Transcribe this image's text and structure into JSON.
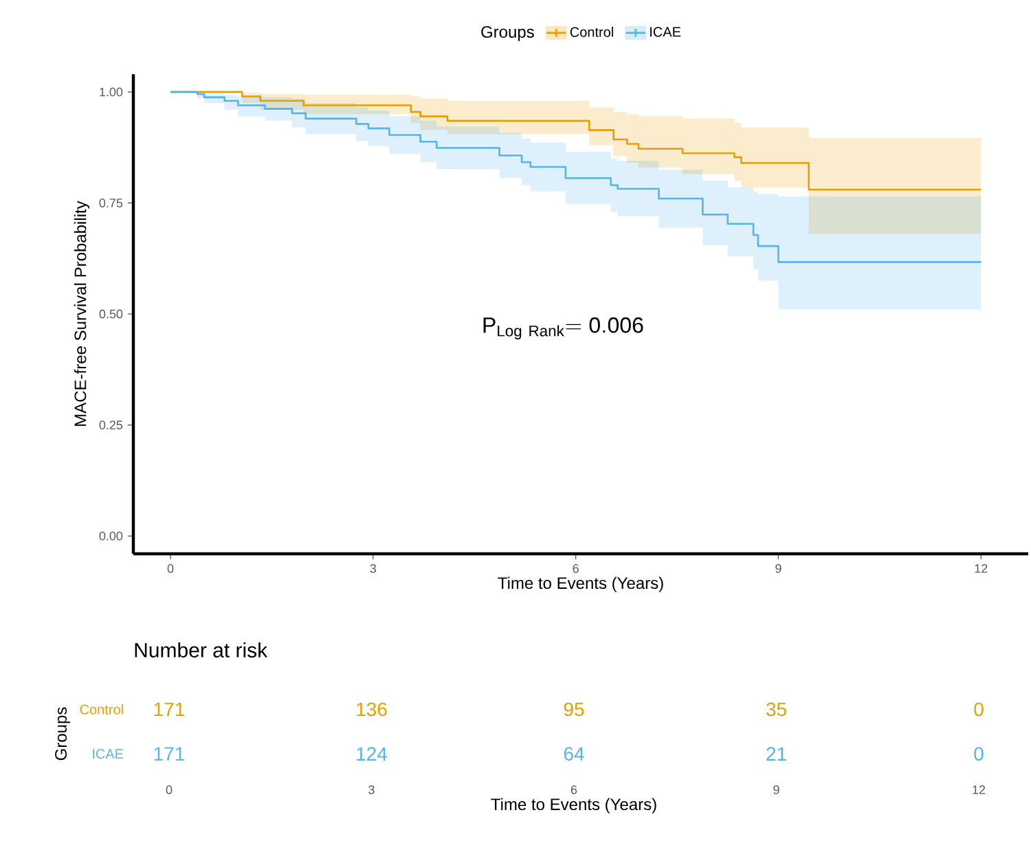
{
  "chart_data": [
    {
      "type": "step",
      "xlabel": "Time to Events (Years)",
      "ylabel": "MACE-free Survival Probability",
      "legend_title": "Groups",
      "legend": "top",
      "xlim": [
        -0.55,
        12.7
      ],
      "xticks": [
        0,
        3,
        6,
        9,
        12
      ],
      "ylim": [
        -0.04,
        1.04
      ],
      "yticks": [
        {
          "value": 0,
          "label": "0.00"
        },
        {
          "value": 0.25,
          "label": "0.25"
        },
        {
          "value": 0.5,
          "label": "0.50"
        },
        {
          "value": 0.75,
          "label": "0.75"
        },
        {
          "value": 1,
          "label": "1.00"
        }
      ],
      "annotations": [
        "\\mathrm{P}_{\\mathrm{Log\\ Rank}}\\mathrm{=0.006}"
      ],
      "series": [
        {
          "name": "Control",
          "color": "#e69f00",
          "x": [
            0,
            1.06,
            1.33,
            1.97,
            3.56,
            3.7,
            4.1,
            6.2,
            6.56,
            6.76,
            6.93,
            7.58,
            8.35,
            8.45,
            9.45,
            12
          ],
          "values": [
            1.0,
            0.99,
            0.98,
            0.97,
            0.955,
            0.945,
            0.935,
            0.914,
            0.893,
            0.883,
            0.872,
            0.862,
            0.853,
            0.84,
            0.78,
            0.78
          ],
          "upper": [
            1.0,
            0.998,
            0.996,
            0.994,
            0.99,
            0.985,
            0.98,
            0.965,
            0.955,
            0.95,
            0.945,
            0.94,
            0.93,
            0.92,
            0.896,
            0.896
          ],
          "lower": [
            1.0,
            0.975,
            0.96,
            0.95,
            0.93,
            0.915,
            0.905,
            0.88,
            0.855,
            0.84,
            0.83,
            0.815,
            0.8,
            0.785,
            0.68,
            0.68
          ]
        },
        {
          "name": "ICAE",
          "color": "#56b4e9",
          "x": [
            0,
            0.4,
            0.5,
            0.8,
            1.0,
            1.4,
            1.8,
            2.0,
            2.75,
            2.93,
            3.24,
            3.7,
            3.94,
            4.87,
            5.2,
            5.33,
            5.85,
            6.52,
            6.62,
            7.23,
            7.88,
            8.25,
            8.63,
            8.7,
            9.0,
            12
          ],
          "values": [
            1.0,
            0.995,
            0.988,
            0.98,
            0.97,
            0.962,
            0.952,
            0.94,
            0.928,
            0.918,
            0.903,
            0.888,
            0.874,
            0.857,
            0.842,
            0.831,
            0.806,
            0.79,
            0.782,
            0.76,
            0.724,
            0.703,
            0.678,
            0.653,
            0.617,
            0.617
          ],
          "upper": [
            1.0,
            0.998,
            0.996,
            0.993,
            0.99,
            0.988,
            0.985,
            0.975,
            0.965,
            0.958,
            0.945,
            0.935,
            0.922,
            0.908,
            0.895,
            0.886,
            0.865,
            0.85,
            0.845,
            0.825,
            0.8,
            0.785,
            0.775,
            0.77,
            0.765,
            0.765
          ],
          "lower": [
            1.0,
            0.985,
            0.975,
            0.96,
            0.945,
            0.935,
            0.92,
            0.905,
            0.89,
            0.878,
            0.86,
            0.842,
            0.826,
            0.806,
            0.79,
            0.776,
            0.748,
            0.73,
            0.72,
            0.695,
            0.655,
            0.63,
            0.6,
            0.575,
            0.51,
            0.51
          ]
        }
      ]
    },
    {
      "type": "heatmap",
      "title": "Number at risk",
      "xlabel": "Time to Events (Years)",
      "ylabel": "Groups",
      "data_labels": true,
      "categories": [
        "0",
        "3",
        "6",
        "9",
        "12"
      ],
      "y_categories": [
        "Control",
        "ICAE"
      ],
      "colors": [
        "#e69f00",
        "#56b4e9"
      ],
      "cells": [
        [
          171,
          136,
          95,
          35,
          0
        ],
        [
          171,
          124,
          64,
          21,
          0
        ]
      ]
    }
  ]
}
